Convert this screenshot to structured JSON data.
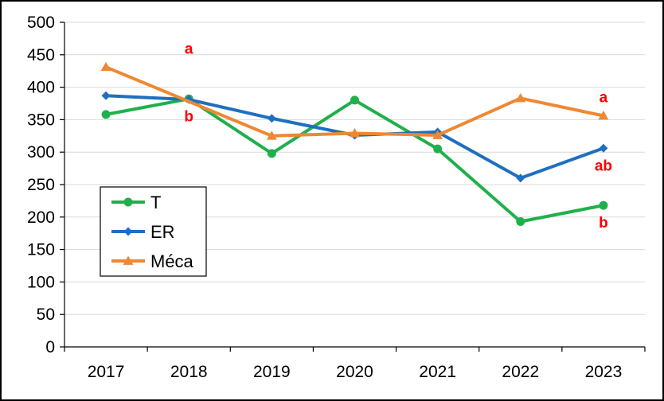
{
  "colors": {
    "T": "#1FB04C",
    "ER": "#1F6FC0",
    "Meca": "#EE8833",
    "annotation": "#FF0000",
    "gridline": "#D9D9D9",
    "axis": "#000000"
  },
  "chart_data": {
    "type": "line",
    "title": "",
    "xlabel": "",
    "ylabel": "",
    "categories": [
      "2017",
      "2018",
      "2019",
      "2020",
      "2021",
      "2022",
      "2023"
    ],
    "ylim": [
      0,
      500
    ],
    "yticks": [
      0,
      50,
      100,
      150,
      200,
      250,
      300,
      350,
      400,
      450,
      500
    ],
    "ytick_labels": [
      "0",
      "50",
      "100",
      "150",
      "200",
      "250",
      "300",
      "350",
      "400",
      "450",
      "500"
    ],
    "grid": true,
    "legend_position": "left",
    "series": [
      {
        "name": "T",
        "marker": "circle",
        "color_key": "T",
        "values": [
          358,
          382,
          298,
          380,
          305,
          193,
          218
        ]
      },
      {
        "name": "ER",
        "marker": "diamond",
        "color_key": "ER",
        "values": [
          387,
          381,
          352,
          326,
          331,
          260,
          306
        ]
      },
      {
        "name": "Méca",
        "marker": "triangle",
        "color_key": "Meca",
        "values": [
          431,
          null,
          325,
          329,
          326,
          383,
          356
        ]
      }
    ],
    "annotations": [
      {
        "text": "a",
        "category": "2018",
        "y": 431,
        "pos": "above"
      },
      {
        "text": "b",
        "category": "2018",
        "y": 382,
        "pos": "below"
      },
      {
        "text": "a",
        "category": "2023",
        "y": 356,
        "pos": "above"
      },
      {
        "text": "ab",
        "category": "2023",
        "y": 306,
        "pos": "below"
      },
      {
        "text": "b",
        "category": "2023",
        "y": 218,
        "pos": "below"
      }
    ]
  }
}
